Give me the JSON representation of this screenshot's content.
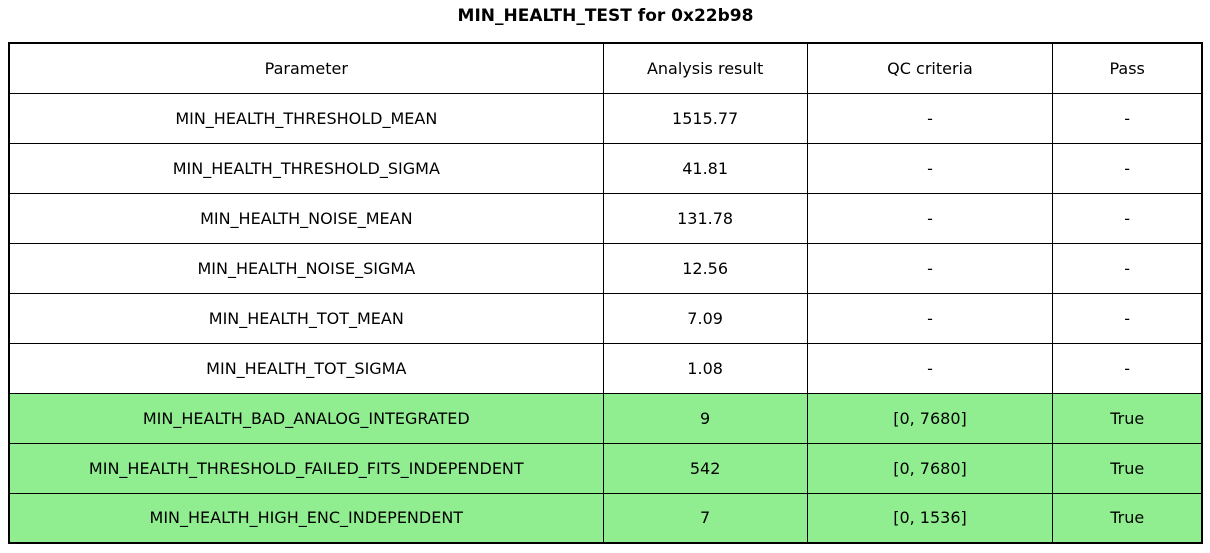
{
  "title": "MIN_HEALTH_TEST for 0x22b98",
  "colors": {
    "pass_green": "#90ee90",
    "border": "#000000",
    "background": "#ffffff"
  },
  "table": {
    "columns": [
      "Parameter",
      "Analysis result",
      "QC criteria",
      "Pass"
    ],
    "rows": [
      {
        "parameter": "MIN_HEALTH_THRESHOLD_MEAN",
        "result": "1515.77",
        "qc": "-",
        "pass": "-",
        "highlight": false
      },
      {
        "parameter": "MIN_HEALTH_THRESHOLD_SIGMA",
        "result": "41.81",
        "qc": "-",
        "pass": "-",
        "highlight": false
      },
      {
        "parameter": "MIN_HEALTH_NOISE_MEAN",
        "result": "131.78",
        "qc": "-",
        "pass": "-",
        "highlight": false
      },
      {
        "parameter": "MIN_HEALTH_NOISE_SIGMA",
        "result": "12.56",
        "qc": "-",
        "pass": "-",
        "highlight": false
      },
      {
        "parameter": "MIN_HEALTH_TOT_MEAN",
        "result": "7.09",
        "qc": "-",
        "pass": "-",
        "highlight": false
      },
      {
        "parameter": "MIN_HEALTH_TOT_SIGMA",
        "result": "1.08",
        "qc": "-",
        "pass": "-",
        "highlight": false
      },
      {
        "parameter": "MIN_HEALTH_BAD_ANALOG_INTEGRATED",
        "result": "9",
        "qc": "[0, 7680]",
        "pass": "True",
        "highlight": true
      },
      {
        "parameter": "MIN_HEALTH_THRESHOLD_FAILED_FITS_INDEPENDENT",
        "result": "542",
        "qc": "[0, 7680]",
        "pass": "True",
        "highlight": true
      },
      {
        "parameter": "MIN_HEALTH_HIGH_ENC_INDEPENDENT",
        "result": "7",
        "qc": "[0, 1536]",
        "pass": "True",
        "highlight": true
      }
    ]
  }
}
